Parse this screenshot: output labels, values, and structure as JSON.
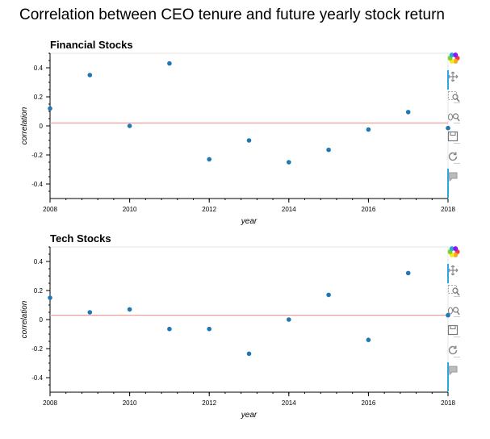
{
  "title": "Correlation between CEO tenure and future yearly stock return",
  "chart_data": [
    {
      "type": "scatter",
      "title": "Financial Stocks",
      "xlabel": "year",
      "ylabel": "correlation",
      "xlim": [
        2008,
        2018
      ],
      "ylim": [
        -0.5,
        0.5
      ],
      "xticks": [
        2008,
        2010,
        2012,
        2014,
        2016,
        2018
      ],
      "yticks": [
        -0.4,
        -0.2,
        0,
        0.2,
        0.4
      ],
      "x": [
        2008,
        2009,
        2010,
        2011,
        2012,
        2013,
        2014,
        2015,
        2016,
        2017,
        2018
      ],
      "y": [
        0.12,
        0.35,
        0.0,
        0.43,
        -0.23,
        -0.1,
        -0.25,
        -0.165,
        -0.025,
        0.095,
        -0.015
      ],
      "reference_line": 0.02,
      "point_color": "#1f77b4",
      "line_color": "#f4a0a0"
    },
    {
      "type": "scatter",
      "title": "Tech Stocks",
      "xlabel": "year",
      "ylabel": "correlation",
      "xlim": [
        2008,
        2018
      ],
      "ylim": [
        -0.5,
        0.5
      ],
      "xticks": [
        2008,
        2010,
        2012,
        2014,
        2016,
        2018
      ],
      "yticks": [
        -0.4,
        -0.2,
        0,
        0.2,
        0.4
      ],
      "x": [
        2008,
        2009,
        2010,
        2011,
        2012,
        2013,
        2014,
        2015,
        2016,
        2017,
        2018
      ],
      "y": [
        0.15,
        0.05,
        0.07,
        -0.065,
        -0.065,
        -0.235,
        0.0,
        0.17,
        -0.14,
        0.32,
        0.03
      ],
      "reference_line": 0.03,
      "point_color": "#1f77b4",
      "line_color": "#f4a0a0"
    }
  ],
  "toolbar": {
    "icons": [
      "bokeh-logo-icon",
      "pan-icon",
      "box-zoom-icon",
      "wheel-zoom-icon",
      "save-icon",
      "reset-icon",
      "hover-icon"
    ],
    "accent": "#26aae1"
  }
}
